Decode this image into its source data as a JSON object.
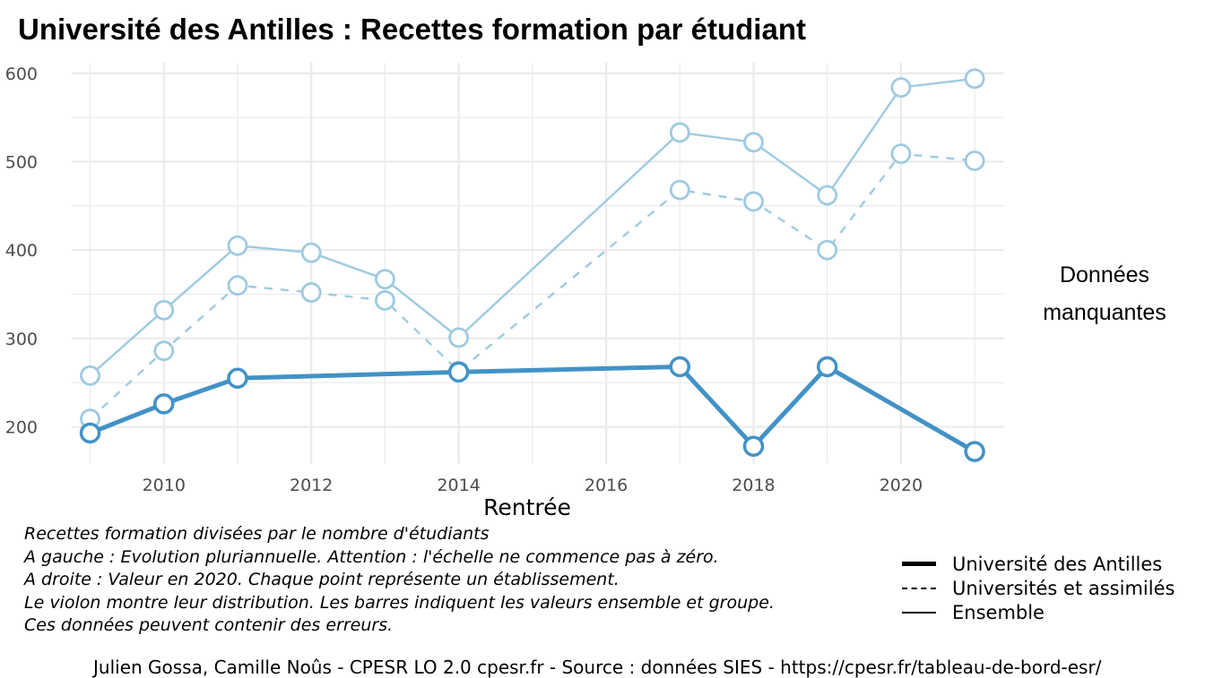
{
  "title": "Université des Antilles  :  Recettes formation par étudiant",
  "missing_label_line1": "Données",
  "missing_label_line2": "manquantes",
  "notes": [
    "Recettes formation divisées par le nombre d'étudiants",
    "A gauche : Evolution pluriannuelle. Attention : l'échelle ne commence pas à zéro.",
    "A droite : Valeur en 2020. Chaque point représente un établissement.",
    "Le violon montre leur distribution. Les barres indiquent les valeurs ensemble et groupe.",
    "Ces données peuvent contenir des erreurs."
  ],
  "legend": [
    {
      "label": "Université des Antilles",
      "style": "thick"
    },
    {
      "label": "Universités et assimilés",
      "style": "dashed"
    },
    {
      "label": "Ensemble",
      "style": "thin"
    }
  ],
  "caption": "Julien Gossa, Camille Noûs - CPESR LO 2.0 cpesr.fr - Source : données SIES - https://cpesr.fr/tableau-de-bord-esr/",
  "colors": {
    "dark": "#4292c6",
    "light": "#9ecae1",
    "grid": "#ebebeb",
    "tick_text": "#4d4d4d"
  },
  "chart_data": {
    "type": "line",
    "xlabel": "Rentrée",
    "ylabel": "",
    "xlim": [
      2008.75,
      2021.4
    ],
    "ylim": [
      158,
      612
    ],
    "x_ticks": [
      2010,
      2012,
      2014,
      2016,
      2018,
      2020
    ],
    "y_ticks": [
      200,
      300,
      400,
      500,
      600
    ],
    "grid": true,
    "legend_position": "bottom-right",
    "series": [
      {
        "name": "Ensemble",
        "style": "thin",
        "color": "#9ecae1",
        "x": [
          2009,
          2010,
          2011,
          2012,
          2013,
          2014,
          2017,
          2018,
          2019,
          2020,
          2021
        ],
        "values": [
          258,
          332,
          405,
          397,
          367,
          301,
          533,
          522,
          462,
          584,
          594
        ]
      },
      {
        "name": "Universités et assimilés",
        "style": "dashed",
        "color": "#9ecae1",
        "x": [
          2009,
          2010,
          2011,
          2012,
          2013,
          2014,
          2017,
          2018,
          2019,
          2020,
          2021
        ],
        "values": [
          209,
          286,
          360,
          352,
          343,
          263,
          468,
          455,
          400,
          509,
          501
        ]
      },
      {
        "name": "Université des Antilles",
        "style": "thick",
        "color": "#4292c6",
        "x": [
          2009,
          2010,
          2011,
          2014,
          2017,
          2018,
          2019,
          2021
        ],
        "values": [
          193,
          226,
          255,
          262,
          268,
          178,
          268,
          172
        ]
      }
    ]
  }
}
